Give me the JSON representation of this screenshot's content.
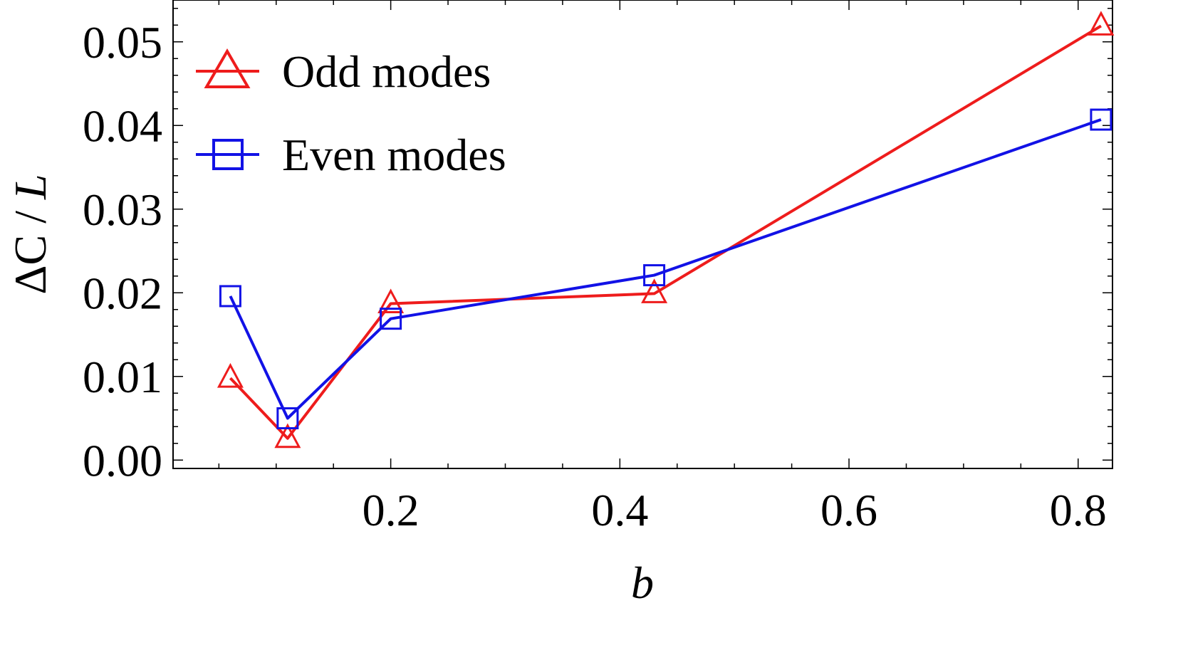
{
  "chart_data": {
    "type": "line",
    "title": "",
    "xlabel": "b",
    "ylabel_delta": "ΔC / ",
    "ylabel_var": "L",
    "xlim": [
      0.01,
      0.83
    ],
    "ylim": [
      -0.001,
      0.055
    ],
    "x_ticks": [
      0.2,
      0.4,
      0.6,
      0.8
    ],
    "x_tick_labels": [
      "0.2",
      "0.4",
      "0.6",
      "0.8"
    ],
    "y_ticks": [
      0.0,
      0.01,
      0.02,
      0.03,
      0.04,
      0.05
    ],
    "y_tick_labels": [
      "0.00",
      "0.01",
      "0.02",
      "0.03",
      "0.04",
      "0.05"
    ],
    "grid": false,
    "legend_position": "top-left",
    "series": [
      {
        "name": "Odd modes",
        "color": "#ee1c1c",
        "marker": "triangle",
        "x": [
          0.06,
          0.11,
          0.2,
          0.43,
          0.82
        ],
        "y": [
          0.0098,
          0.0026,
          0.0187,
          0.0199,
          0.0519
        ]
      },
      {
        "name": "Even modes",
        "color": "#1212e6",
        "marker": "square",
        "x": [
          0.06,
          0.11,
          0.2,
          0.43,
          0.82
        ],
        "y": [
          0.0196,
          0.005,
          0.0169,
          0.0221,
          0.0407
        ]
      }
    ]
  }
}
